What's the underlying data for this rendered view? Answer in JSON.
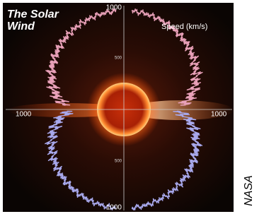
{
  "image": {
    "title": "The Solar Wind",
    "speed_label": "Speed (km/s)",
    "axis_labels": {
      "top": "1000",
      "top_mid": "500",
      "left": "1000",
      "right": "1000",
      "bottom_mid": "500",
      "bottom": "1000"
    },
    "credit": "NASA"
  }
}
